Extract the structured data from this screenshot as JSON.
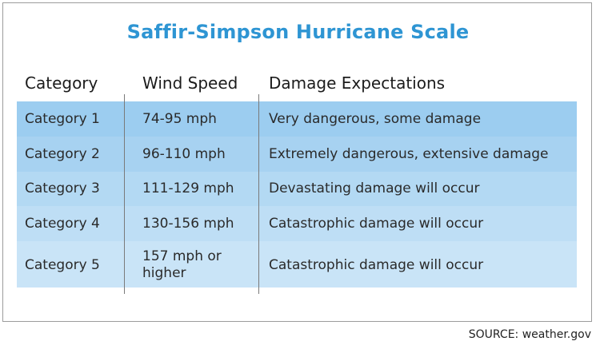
{
  "title": "Saffir-Simpson Hurricane Scale",
  "headers": {
    "category": "Category",
    "wind_speed": "Wind Speed",
    "damage": "Damage Expectations"
  },
  "rows": [
    {
      "category": "Category 1",
      "wind_line1": "74-95 mph",
      "wind_line2": "",
      "damage": "Very dangerous, some damage",
      "color": "#9ccdf0"
    },
    {
      "category": "Category 2",
      "wind_line1": "96-110 mph",
      "wind_line2": "",
      "damage": "Extremely dangerous, extensive damage",
      "color": "#a7d2f1"
    },
    {
      "category": "Category 3",
      "wind_line1": "111-129 mph",
      "wind_line2": "",
      "damage": "Devastating damage will occur",
      "color": "#b3d9f3"
    },
    {
      "category": "Category 4",
      "wind_line1": "130-156 mph",
      "wind_line2": "",
      "damage": "Catastrophic damage will occur",
      "color": "#bedef5"
    },
    {
      "category": "Category 5",
      "wind_line1": "157 mph or",
      "wind_line2": "higher",
      "damage": "Catastrophic damage will occur",
      "color": "#c9e4f7"
    }
  ],
  "source": "SOURCE: weather.gov"
}
